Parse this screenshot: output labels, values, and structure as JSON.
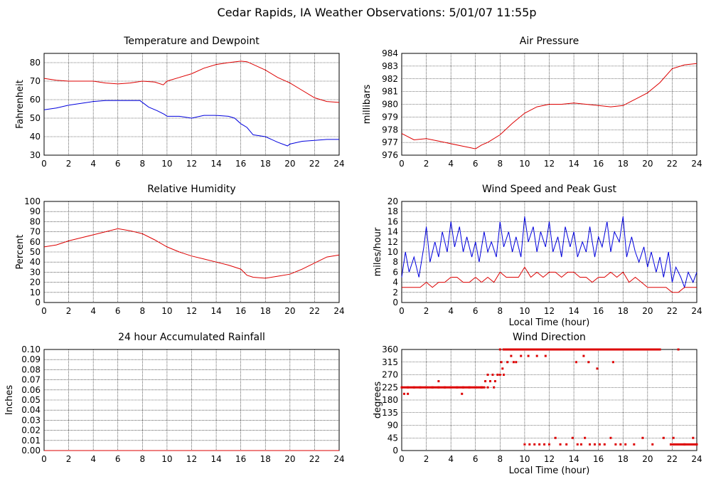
{
  "title": "Cedar Rapids, IA Weather Observations: 5/01/07 11:55p",
  "colors": {
    "red": "#dd0000",
    "blue": "#0000dd",
    "grid": "#000000"
  },
  "chart_data": [
    {
      "type": "line",
      "title": "Temperature and Dewpoint",
      "xlabel": "",
      "ylabel": "Fahrenheit",
      "xlim": [
        0,
        24
      ],
      "ylim": [
        30,
        85
      ],
      "xticks": [
        0,
        2,
        4,
        6,
        8,
        10,
        12,
        14,
        16,
        18,
        20,
        22,
        24
      ],
      "yticks": [
        30,
        40,
        50,
        60,
        70,
        80
      ],
      "grid": true,
      "series": [
        {
          "color": "red",
          "x": [
            0,
            1,
            2,
            3,
            4,
            5,
            6,
            7,
            8,
            9,
            9.7,
            10,
            11,
            12,
            13,
            14,
            15,
            16,
            16.5,
            17,
            18,
            19,
            20,
            21,
            22,
            23,
            24
          ],
          "y": [
            71.5,
            70.5,
            70,
            70,
            70,
            69,
            68.5,
            69,
            70,
            69.5,
            68,
            70,
            72,
            74,
            77,
            79,
            80,
            80.8,
            80.5,
            79,
            76,
            72,
            69,
            65,
            61,
            59,
            58.5
          ]
        },
        {
          "color": "blue",
          "x": [
            0,
            1,
            2,
            3,
            4,
            5,
            6,
            7,
            7.8,
            8.5,
            9.2,
            9.8,
            10,
            11,
            12,
            13,
            14,
            15,
            15.5,
            16,
            16.5,
            17,
            18,
            19,
            19.8,
            20,
            21,
            22,
            23,
            24
          ],
          "y": [
            54.5,
            55.5,
            57,
            58,
            59,
            59.5,
            59.5,
            59.5,
            59.5,
            56,
            54,
            52,
            51,
            51,
            50,
            51.5,
            51.5,
            51,
            50,
            47,
            45,
            41,
            40,
            37,
            35,
            36,
            37.5,
            38,
            38.5,
            38.5
          ]
        }
      ]
    },
    {
      "type": "line",
      "title": "Air Pressure",
      "xlabel": "",
      "ylabel": "millibars",
      "xlim": [
        0,
        24
      ],
      "ylim": [
        976,
        984
      ],
      "xticks": [
        0,
        2,
        4,
        6,
        8,
        10,
        12,
        14,
        16,
        18,
        20,
        22,
        24
      ],
      "yticks": [
        976,
        977,
        978,
        979,
        980,
        981,
        982,
        983,
        984
      ],
      "ytick_labels": [
        "976",
        "977",
        "978",
        "979",
        "980",
        "981",
        "982",
        "983",
        "984"
      ],
      "grid": true,
      "series": [
        {
          "color": "red",
          "x": [
            0,
            1,
            2,
            3,
            4,
            5,
            5.5,
            6,
            6.5,
            7,
            8,
            9,
            10,
            11,
            12,
            13,
            14,
            15,
            16,
            17,
            18,
            19,
            20,
            21,
            22,
            23,
            24
          ],
          "y": [
            977.7,
            977.2,
            977.3,
            977.1,
            976.9,
            976.7,
            976.6,
            976.5,
            976.8,
            977.0,
            977.6,
            978.5,
            979.3,
            979.8,
            980.0,
            980.0,
            980.1,
            980.0,
            979.9,
            979.8,
            979.9,
            980.4,
            980.9,
            981.7,
            982.8,
            983.1,
            983.2
          ]
        }
      ]
    },
    {
      "type": "line",
      "title": "Relative Humidity",
      "xlabel": "",
      "ylabel": "Percent",
      "xlim": [
        0,
        24
      ],
      "ylim": [
        0,
        100
      ],
      "xticks": [
        0,
        2,
        4,
        6,
        8,
        10,
        12,
        14,
        16,
        18,
        20,
        22,
        24
      ],
      "yticks": [
        0,
        10,
        20,
        30,
        40,
        50,
        60,
        70,
        80,
        90,
        100
      ],
      "grid": true,
      "series": [
        {
          "color": "red",
          "x": [
            0,
            1,
            2,
            3,
            4,
            5,
            6,
            7,
            8,
            9,
            10,
            11,
            12,
            13,
            14,
            15,
            16,
            16.5,
            17,
            18,
            19,
            20,
            21,
            22,
            23,
            24
          ],
          "y": [
            55,
            57,
            61,
            64,
            67,
            70,
            73,
            71,
            68,
            62,
            55,
            50,
            46,
            43,
            40,
            37,
            33,
            27,
            25,
            24,
            26,
            28,
            33,
            39,
            45,
            47
          ]
        }
      ]
    },
    {
      "type": "line",
      "title": "Wind Speed and Peak Gust",
      "xlabel": "Local Time (hour)",
      "ylabel": "miles/hour",
      "xlim": [
        0,
        24
      ],
      "ylim": [
        0,
        20
      ],
      "xticks": [
        0,
        2,
        4,
        6,
        8,
        10,
        12,
        14,
        16,
        18,
        20,
        22,
        24
      ],
      "yticks": [
        0,
        2,
        4,
        6,
        8,
        10,
        12,
        14,
        16,
        18,
        20
      ],
      "grid": true,
      "series": [
        {
          "color": "blue",
          "x": [
            0,
            0.3,
            0.6,
            1,
            1.4,
            1.8,
            2,
            2.3,
            2.7,
            3,
            3.3,
            3.7,
            4,
            4.3,
            4.7,
            5,
            5.3,
            5.7,
            6,
            6.3,
            6.7,
            7,
            7.3,
            7.7,
            8,
            8.3,
            8.7,
            9,
            9.3,
            9.7,
            10,
            10.3,
            10.7,
            11,
            11.3,
            11.7,
            12,
            12.3,
            12.7,
            13,
            13.3,
            13.7,
            14,
            14.3,
            14.7,
            15,
            15.3,
            15.7,
            16,
            16.3,
            16.7,
            17,
            17.3,
            17.7,
            18,
            18.3,
            18.7,
            19,
            19.3,
            19.7,
            20,
            20.3,
            20.7,
            21,
            21.3,
            21.7,
            22,
            22.3,
            22.7,
            23,
            23.3,
            23.7,
            24
          ],
          "y": [
            5,
            10,
            6,
            9,
            5,
            11,
            15,
            8,
            12,
            9,
            14,
            10,
            16,
            11,
            15,
            10,
            13,
            9,
            12,
            8,
            14,
            10,
            12,
            9,
            16,
            11,
            14,
            10,
            13,
            9,
            17,
            12,
            15,
            10,
            14,
            11,
            16,
            10,
            13,
            9,
            15,
            11,
            14,
            9,
            12,
            10,
            15,
            9,
            13,
            11,
            16,
            10,
            14,
            12,
            17,
            9,
            13,
            10,
            8,
            11,
            7,
            10,
            6,
            9,
            5,
            10,
            4,
            7,
            5,
            3,
            6,
            4,
            6
          ]
        },
        {
          "color": "red",
          "x": [
            0,
            0.5,
            1,
            1.5,
            2,
            2.5,
            3,
            3.5,
            4,
            4.5,
            5,
            5.5,
            6,
            6.5,
            7,
            7.5,
            8,
            8.5,
            9,
            9.5,
            10,
            10.5,
            11,
            11.5,
            12,
            12.5,
            13,
            13.5,
            14,
            14.5,
            15,
            15.5,
            16,
            16.5,
            17,
            17.5,
            18,
            18.5,
            19,
            19.5,
            20,
            20.5,
            21,
            21.5,
            22,
            22.5,
            23,
            23.5,
            24
          ],
          "y": [
            3,
            3,
            3,
            3,
            4,
            3,
            4,
            4,
            5,
            5,
            4,
            4,
            5,
            4,
            5,
            4,
            6,
            5,
            5,
            5,
            7,
            5,
            6,
            5,
            6,
            6,
            5,
            6,
            6,
            5,
            5,
            4,
            5,
            5,
            6,
            5,
            6,
            4,
            5,
            4,
            3,
            3,
            3,
            3,
            2,
            2,
            3,
            3,
            3
          ]
        }
      ]
    },
    {
      "type": "line",
      "title": "24 hour Accumulated Rainfall",
      "xlabel": "",
      "ylabel": "Inches",
      "xlim": [
        0,
        24
      ],
      "ylim": [
        0,
        0.1
      ],
      "xticks": [
        0,
        2,
        4,
        6,
        8,
        10,
        12,
        14,
        16,
        18,
        20,
        22,
        24
      ],
      "yticks": [
        0,
        0.01,
        0.02,
        0.03,
        0.04,
        0.05,
        0.06,
        0.07,
        0.08,
        0.09,
        0.1
      ],
      "ytick_labels": [
        "0.00",
        "0.01",
        "0.02",
        "0.03",
        "0.04",
        "0.05",
        "0.06",
        "0.07",
        "0.08",
        "0.09",
        "0.10"
      ],
      "grid": true,
      "series": [
        {
          "color": "red",
          "x": [
            0,
            24
          ],
          "y": [
            0,
            0
          ]
        }
      ]
    },
    {
      "type": "scatter",
      "title": "Wind Direction",
      "xlabel": "Local Time (hour)",
      "ylabel": "degrees",
      "xlim": [
        0,
        24
      ],
      "ylim": [
        0,
        360
      ],
      "xticks": [
        0,
        2,
        4,
        6,
        8,
        10,
        12,
        14,
        16,
        18,
        20,
        22,
        24
      ],
      "yticks": [
        0,
        45,
        90,
        135,
        180,
        225,
        270,
        315,
        360
      ],
      "grid": true,
      "series": [
        {
          "color": "red",
          "x": [
            0.2,
            0.5,
            3,
            4.9,
            6.8,
            7,
            7.2,
            7.4,
            7.6,
            7.8,
            8,
            8.1,
            8.2,
            8.3,
            8.6,
            8.9,
            9.1,
            10,
            10.4,
            10.8,
            11.2,
            11.6,
            12,
            12.5,
            12.9,
            13.4,
            13.9,
            14.3,
            14.6,
            14.9,
            15.3,
            15.7,
            16.1,
            16.5,
            17.0,
            17.4,
            17.8,
            18.2,
            18.9,
            19.6,
            20.4,
            21.3,
            22.1,
            23.0,
            23.7
          ],
          "y": [
            202,
            202,
            247,
            202,
            247,
            270,
            247,
            270,
            247,
            270,
            270,
            315,
            292,
            270,
            315,
            337,
            315,
            22,
            22,
            22,
            22,
            22,
            22,
            45,
            22,
            22,
            45,
            22,
            22,
            45,
            22,
            22,
            22,
            22,
            45,
            22,
            22,
            22,
            22,
            45,
            22,
            45,
            45,
            22,
            45
          ]
        },
        {
          "color": "red",
          "x": [
            0,
            0.5,
            1,
            1.5,
            2,
            2.5,
            3,
            3.5,
            4,
            4.5,
            5,
            5.5,
            6,
            6.5,
            7,
            7.5,
            8,
            8.5,
            9,
            9.5,
            10,
            10.5,
            11,
            11.5,
            12,
            12.5,
            13,
            13.5,
            14,
            14.5,
            15,
            15.5,
            16,
            16.5,
            17,
            17.5,
            18,
            18.5,
            19,
            19.5,
            20,
            20.5,
            21,
            22.5,
            24
          ],
          "y": [
            225,
            225,
            225,
            225,
            225,
            225,
            225,
            225,
            225,
            225,
            225,
            225,
            225,
            225,
            225,
            225,
            360,
            360,
            360,
            360,
            360,
            360,
            360,
            360,
            360,
            360,
            360,
            360,
            360,
            360,
            360,
            360,
            360,
            360,
            360,
            360,
            360,
            360,
            360,
            360,
            360,
            360,
            360,
            360,
            22
          ]
        },
        {
          "color": "red",
          "x": [
            9.3,
            9.7,
            10.3,
            11,
            11.7,
            14.2,
            14.8,
            15.2,
            15.9,
            17.2
          ],
          "y": [
            315,
            337,
            337,
            337,
            337,
            315,
            337,
            315,
            292,
            315
          ]
        }
      ]
    }
  ]
}
